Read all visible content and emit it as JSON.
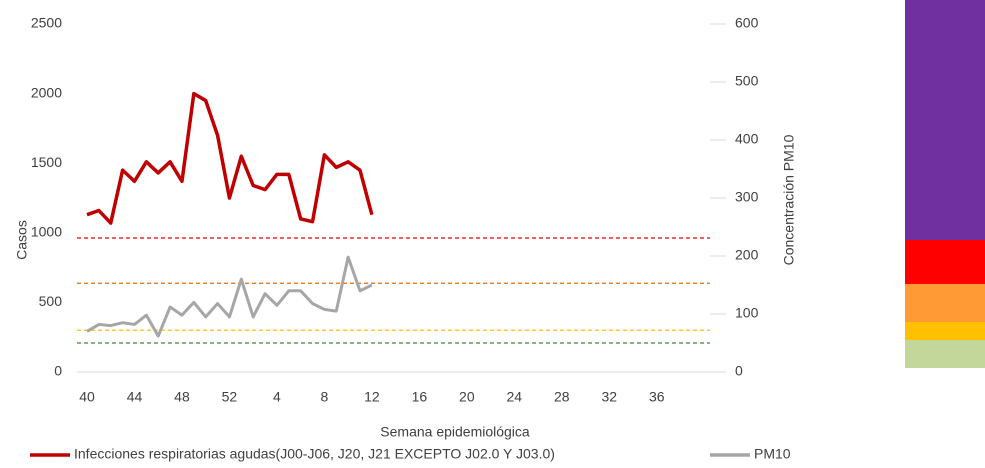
{
  "chart_data": {
    "type": "line",
    "categories": [
      "40",
      null,
      null,
      null,
      "44",
      null,
      null,
      null,
      "48",
      null,
      null,
      null,
      "52",
      null,
      null,
      null,
      "4",
      null,
      null,
      null,
      "8",
      null,
      null,
      null,
      "12",
      null,
      null,
      null,
      "16",
      null,
      null,
      null,
      "20",
      null,
      null,
      null,
      "24",
      null,
      null,
      null,
      "28",
      null,
      null,
      null,
      "32",
      null,
      null,
      null,
      "36",
      null,
      null,
      null
    ],
    "series": [
      {
        "name": "Infecciones respiratorias agudas(J00-J06, J20, J21 EXCEPTO J02.0 Y J03.0)",
        "color": "#c00000",
        "values": [
          1130,
          1160,
          1070,
          1450,
          1370,
          1510,
          1430,
          1510,
          1370,
          2000,
          1950,
          1700,
          1250,
          1550,
          1340,
          1310,
          1420,
          1420,
          1100,
          1080,
          1560,
          1470,
          1510,
          1450,
          1130,
          null,
          null,
          null,
          null,
          null,
          null,
          null,
          null,
          null,
          null,
          null,
          null,
          null,
          null,
          null,
          null,
          null,
          null,
          null,
          null,
          null,
          null,
          null,
          null,
          null,
          null,
          null
        ]
      },
      {
        "name": "PM10",
        "color": "#a6a6a6",
        "axis": "y2",
        "values": [
          70,
          82,
          80,
          85,
          82,
          98,
          62,
          112,
          98,
          120,
          95,
          118,
          95,
          160,
          95,
          135,
          115,
          140,
          140,
          118,
          108,
          105,
          198,
          140,
          150,
          null,
          null,
          null,
          null,
          null,
          null,
          null,
          null,
          null,
          null,
          null,
          null,
          null,
          null,
          null,
          null,
          null,
          null,
          null,
          null,
          null,
          null,
          null,
          null,
          null,
          null,
          null
        ]
      }
    ],
    "thresholds": [
      {
        "value": 231,
        "color": "#e00000"
      },
      {
        "value": 153,
        "color": "#e26b0a"
      },
      {
        "value": 72,
        "color": "#ffc000"
      },
      {
        "value": 50,
        "color": "#3a8a3a"
      }
    ],
    "xlabel": "Semana epidemiológica",
    "ylabel": "Casos",
    "y2label": "Concentración PM10",
    "ylim": [
      0,
      2500
    ],
    "yticks": [
      0,
      500,
      1000,
      1500,
      2000,
      2500
    ],
    "y2lim": [
      0,
      600
    ],
    "y2ticks": [
      0,
      100,
      200,
      300,
      400,
      500,
      600
    ],
    "legend": "bottom"
  }
}
